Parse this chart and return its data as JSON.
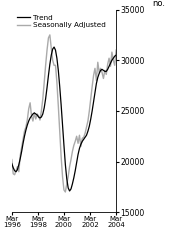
{
  "title": "",
  "ylabel": "no.",
  "ylim": [
    15000,
    35000
  ],
  "yticks": [
    15000,
    20000,
    25000,
    30000,
    35000
  ],
  "legend_trend": "Trend",
  "legend_sa": "Seasonally Adjusted",
  "trend_color": "#000000",
  "sa_color": "#aaaaaa",
  "background_color": "#ffffff",
  "trend_data": [
    19800,
    19400,
    19100,
    19000,
    19200,
    19700,
    20300,
    21000,
    21800,
    22500,
    23100,
    23600,
    24000,
    24300,
    24500,
    24700,
    24800,
    24700,
    24600,
    24400,
    24300,
    24400,
    24700,
    25300,
    26200,
    27300,
    28500,
    29600,
    30500,
    31100,
    31300,
    31000,
    30200,
    29000,
    27400,
    25600,
    23600,
    21600,
    19700,
    18300,
    17400,
    17100,
    17300,
    17800,
    18400,
    19100,
    19900,
    20700,
    21300,
    21700,
    22000,
    22200,
    22400,
    22600,
    23000,
    23500,
    24200,
    25000,
    25900,
    26800,
    27700,
    28300,
    28700,
    29000,
    29100,
    29000,
    28900,
    28900,
    29100,
    29400,
    29700,
    30000,
    30200,
    30400,
    30500
  ],
  "sa_data": [
    20200,
    18800,
    18700,
    19100,
    19500,
    19000,
    20600,
    21400,
    22200,
    23000,
    23400,
    24100,
    25200,
    25800,
    24500,
    24000,
    24800,
    24200,
    24700,
    24500,
    24100,
    25000,
    26200,
    27800,
    29500,
    31000,
    32200,
    32500,
    31200,
    30000,
    29500,
    29500,
    27800,
    25500,
    23000,
    20500,
    18500,
    17200,
    17000,
    17800,
    18500,
    19500,
    20200,
    21000,
    21600,
    22000,
    22500,
    21800,
    22600,
    21500,
    22300,
    22400,
    22800,
    23400,
    24000,
    25000,
    26200,
    27400,
    28500,
    29200,
    28000,
    29800,
    28800,
    29200,
    28800,
    28200,
    29000,
    28600,
    29600,
    30200,
    29400,
    30800,
    30000,
    29500,
    31000
  ],
  "n_points": 75
}
